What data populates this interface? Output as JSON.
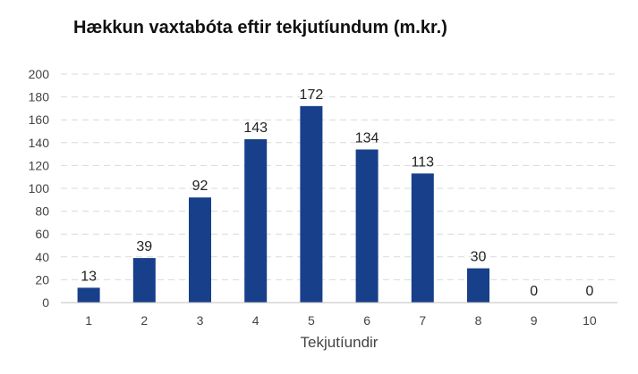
{
  "chart_data": {
    "type": "bar",
    "title": "Hækkun vaxtabóta eftir tekjutíundum (m.kr.)",
    "xlabel": "Tekjutíundir",
    "ylabel": "",
    "categories": [
      "1",
      "2",
      "3",
      "4",
      "5",
      "6",
      "7",
      "8",
      "9",
      "10"
    ],
    "values": [
      13,
      39,
      92,
      143,
      172,
      134,
      113,
      30,
      0,
      0
    ],
    "ylim": [
      0,
      200
    ],
    "yticks": [
      0,
      20,
      40,
      60,
      80,
      100,
      120,
      140,
      160,
      180,
      200
    ],
    "grid": "horizontal dashed",
    "bar_color": "#173f8a",
    "grid_color": "#d9d9d9",
    "axis_color": "#bfbfbf"
  }
}
